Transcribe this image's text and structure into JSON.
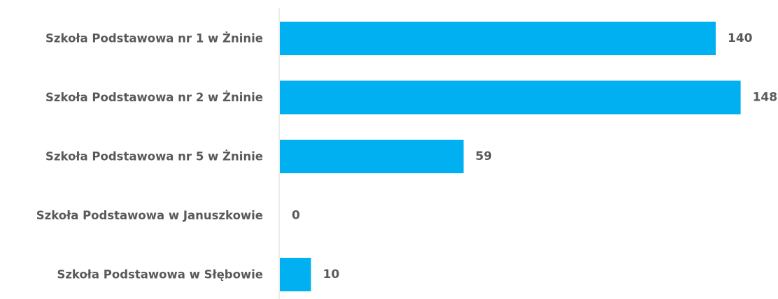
{
  "chart_data": {
    "type": "bar",
    "orientation": "horizontal",
    "categories": [
      "Szkoła Podstawowa nr 1 w Żninie",
      "Szkoła Podstawowa nr 2 w Żninie",
      "Szkoła Podstawowa nr 5 w Żninie",
      "Szkoła Podstawowa w Januszkowie",
      "Szkoła Podstawowa w Słębowie"
    ],
    "values": [
      140,
      148,
      59,
      0,
      10
    ],
    "data_labels": [
      "140",
      "148",
      "59",
      "0",
      "10"
    ],
    "title": "",
    "xlabel": "",
    "ylabel": "",
    "xlim": [
      0,
      150
    ],
    "grid": false,
    "legend": "none",
    "colors": {
      "bar": "#00B0F0",
      "axis": "#D9D9D9",
      "text": "#595959"
    }
  }
}
